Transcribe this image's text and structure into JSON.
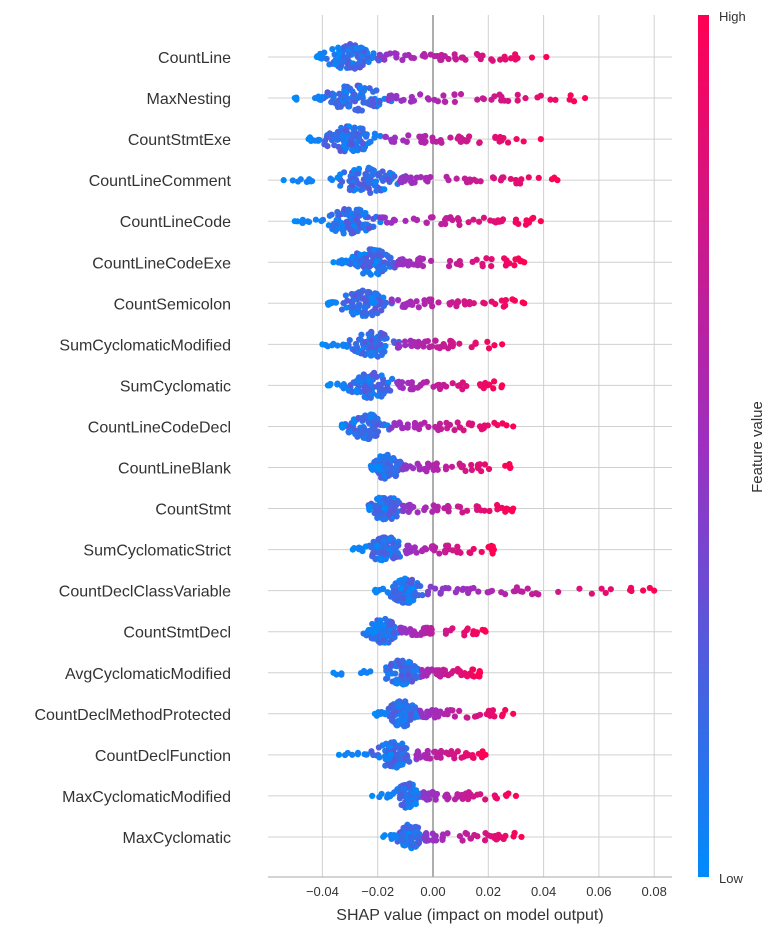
{
  "chart_data": {
    "type": "scatter",
    "subtype": "shap-beeswarm",
    "title": "",
    "xlabel": "SHAP value (impact on model output)",
    "ylabel": "",
    "xlim": [
      -0.06,
      0.088
    ],
    "xticks": [
      -0.04,
      -0.02,
      0.0,
      0.02,
      0.04,
      0.06,
      0.08
    ],
    "xtick_labels": [
      "−0.04",
      "−0.02",
      "0.00",
      "0.02",
      "0.04",
      "0.06",
      "0.08"
    ],
    "grid": true,
    "colorbar": {
      "label": "Feature value",
      "high_label": "High",
      "low_label": "Low",
      "low_color": "#008bfb",
      "high_color": "#ff0052"
    },
    "features": [
      {
        "name": "CountLine",
        "min": -0.042,
        "max": 0.041,
        "center": -0.03,
        "spread": 0.01
      },
      {
        "name": "MaxNesting",
        "min": -0.05,
        "max": 0.055,
        "center": -0.028,
        "spread": 0.012
      },
      {
        "name": "CountStmtExe",
        "min": -0.045,
        "max": 0.039,
        "center": -0.03,
        "spread": 0.011
      },
      {
        "name": "CountLineComment",
        "min": -0.054,
        "max": 0.045,
        "center": -0.024,
        "spread": 0.012
      },
      {
        "name": "CountLineCode",
        "min": -0.05,
        "max": 0.039,
        "center": -0.03,
        "spread": 0.01
      },
      {
        "name": "CountLineCodeExe",
        "min": -0.036,
        "max": 0.033,
        "center": -0.022,
        "spread": 0.009
      },
      {
        "name": "CountSemicolon",
        "min": -0.038,
        "max": 0.033,
        "center": -0.025,
        "spread": 0.01
      },
      {
        "name": "SumCyclomaticModified",
        "min": -0.04,
        "max": 0.025,
        "center": -0.022,
        "spread": 0.009
      },
      {
        "name": "SumCyclomatic",
        "min": -0.038,
        "max": 0.025,
        "center": -0.022,
        "spread": 0.009
      },
      {
        "name": "CountLineCodeDecl",
        "min": -0.033,
        "max": 0.029,
        "center": -0.024,
        "spread": 0.008
      },
      {
        "name": "CountLineBlank",
        "min": -0.02,
        "max": 0.028,
        "center": -0.017,
        "spread": 0.006
      },
      {
        "name": "CountStmt",
        "min": -0.023,
        "max": 0.029,
        "center": -0.017,
        "spread": 0.006
      },
      {
        "name": "SumCyclomaticStrict",
        "min": -0.029,
        "max": 0.022,
        "center": -0.017,
        "spread": 0.007
      },
      {
        "name": "CountDeclClassVariable",
        "min": -0.021,
        "max": 0.08,
        "center": -0.01,
        "spread": 0.006
      },
      {
        "name": "CountStmtDecl",
        "min": -0.021,
        "max": 0.019,
        "center": -0.018,
        "spread": 0.006
      },
      {
        "name": "AvgCyclomaticModified",
        "min": -0.036,
        "max": 0.017,
        "center": -0.011,
        "spread": 0.007
      },
      {
        "name": "CountDeclMethodProtected",
        "min": -0.021,
        "max": 0.029,
        "center": -0.011,
        "spread": 0.006
      },
      {
        "name": "CountDeclFunction",
        "min": -0.034,
        "max": 0.019,
        "center": -0.014,
        "spread": 0.008
      },
      {
        "name": "MaxCyclomaticModified",
        "min": -0.022,
        "max": 0.03,
        "center": -0.009,
        "spread": 0.005
      },
      {
        "name": "MaxCyclomatic",
        "min": -0.018,
        "max": 0.032,
        "center": -0.008,
        "spread": 0.005
      }
    ]
  }
}
